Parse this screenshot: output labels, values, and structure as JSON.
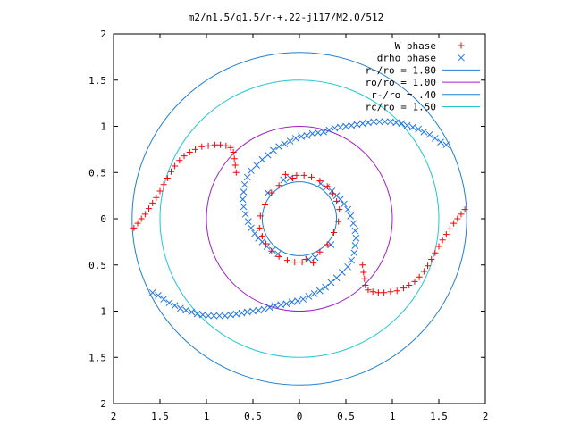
{
  "chart_data": {
    "type": "scatter",
    "title": "m2/n1.5/q1.5/r-+.22-j117/M2.0/512",
    "xlabel": "",
    "ylabel": "",
    "xlim": [
      -2,
      2
    ],
    "ylim": [
      -2,
      2
    ],
    "x_tick_values": [
      -2,
      -1.5,
      -1,
      -0.5,
      0,
      0.5,
      1,
      1.5,
      2
    ],
    "x_tick_labels": [
      "2",
      "1.5",
      "1",
      "0.5",
      "0",
      "0.5",
      "1",
      "1.5",
      "2"
    ],
    "y_tick_values": [
      2,
      1.5,
      1,
      0.5,
      0,
      -0.5,
      -1,
      -1.5,
      -2
    ],
    "y_tick_labels": [
      "2",
      "1.5",
      "1",
      "0.5",
      "0",
      "0.5",
      "1",
      "1.5",
      "2"
    ],
    "grid": false,
    "legend_position": "top-right",
    "point_series": [
      {
        "name": "W phase",
        "marker": "plus",
        "color": "#ff0000",
        "points": [
          [
            -1.78,
            -0.1
          ],
          [
            -1.74,
            -0.05
          ],
          [
            -1.7,
            0.0
          ],
          [
            -1.66,
            0.05
          ],
          [
            -1.62,
            0.11
          ],
          [
            -1.58,
            0.17
          ],
          [
            -1.54,
            0.23
          ],
          [
            -1.5,
            0.3
          ],
          [
            -1.46,
            0.37
          ],
          [
            -1.42,
            0.44
          ],
          [
            -1.38,
            0.51
          ],
          [
            -1.34,
            0.57
          ],
          [
            -1.29,
            0.63
          ],
          [
            -1.24,
            0.68
          ],
          [
            -1.18,
            0.72
          ],
          [
            -1.12,
            0.75
          ],
          [
            -1.05,
            0.78
          ],
          [
            -0.98,
            0.79
          ],
          [
            -0.91,
            0.8
          ],
          [
            -0.85,
            0.8
          ],
          [
            -0.79,
            0.79
          ],
          [
            -0.74,
            0.77
          ],
          [
            -0.71,
            0.72
          ],
          [
            -0.7,
            0.65
          ],
          [
            -0.69,
            0.58
          ],
          [
            -0.68,
            0.5
          ],
          [
            1.78,
            0.1
          ],
          [
            1.74,
            0.05
          ],
          [
            1.7,
            0.0
          ],
          [
            1.66,
            -0.05
          ],
          [
            1.62,
            -0.11
          ],
          [
            1.58,
            -0.17
          ],
          [
            1.54,
            -0.23
          ],
          [
            1.5,
            -0.3
          ],
          [
            1.46,
            -0.37
          ],
          [
            1.42,
            -0.44
          ],
          [
            1.38,
            -0.51
          ],
          [
            1.34,
            -0.57
          ],
          [
            1.29,
            -0.63
          ],
          [
            1.24,
            -0.68
          ],
          [
            1.18,
            -0.72
          ],
          [
            1.12,
            -0.75
          ],
          [
            1.05,
            -0.78
          ],
          [
            0.98,
            -0.79
          ],
          [
            0.91,
            -0.8
          ],
          [
            0.85,
            -0.8
          ],
          [
            0.79,
            -0.79
          ],
          [
            0.74,
            -0.77
          ],
          [
            0.71,
            -0.72
          ],
          [
            0.7,
            -0.65
          ],
          [
            0.69,
            -0.58
          ],
          [
            0.68,
            -0.5
          ],
          [
            -0.03,
            0.47
          ],
          [
            0.05,
            0.47
          ],
          [
            0.13,
            0.45
          ],
          [
            0.22,
            0.41
          ],
          [
            0.3,
            0.35
          ],
          [
            0.36,
            0.27
          ],
          [
            0.4,
            0.19
          ],
          [
            0.43,
            0.1
          ],
          [
            0.42,
            -0.03
          ],
          [
            0.37,
            -0.15
          ],
          [
            0.3,
            -0.28
          ],
          [
            0.22,
            -0.36
          ],
          [
            0.03,
            -0.47
          ],
          [
            -0.05,
            -0.47
          ],
          [
            -0.13,
            -0.45
          ],
          [
            -0.22,
            -0.41
          ],
          [
            -0.3,
            -0.35
          ],
          [
            -0.36,
            -0.27
          ],
          [
            -0.4,
            -0.19
          ],
          [
            -0.43,
            -0.1
          ],
          [
            -0.42,
            0.03
          ],
          [
            -0.37,
            0.15
          ],
          [
            -0.3,
            0.28
          ],
          [
            -0.22,
            0.36
          ],
          [
            -0.15,
            0.48
          ],
          [
            0.15,
            -0.48
          ],
          [
            0.07,
            -0.44
          ],
          [
            -0.07,
            0.44
          ]
        ]
      },
      {
        "name": "drho phase",
        "marker": "cross",
        "color": "#1e73e8",
        "points": [
          [
            -1.58,
            -0.8
          ],
          [
            -1.52,
            -0.83
          ],
          [
            -1.46,
            -0.87
          ],
          [
            -1.4,
            -0.91
          ],
          [
            -1.34,
            -0.94
          ],
          [
            -1.28,
            -0.97
          ],
          [
            -1.22,
            -0.99
          ],
          [
            -1.16,
            -1.01
          ],
          [
            -1.1,
            -1.03
          ],
          [
            -1.04,
            -1.04
          ],
          [
            -0.98,
            -1.05
          ],
          [
            -0.92,
            -1.05
          ],
          [
            -0.86,
            -1.05
          ],
          [
            -0.8,
            -1.05
          ],
          [
            -0.74,
            -1.04
          ],
          [
            -0.68,
            -1.03
          ],
          [
            -0.62,
            -1.02
          ],
          [
            -0.56,
            -1.01
          ],
          [
            -0.5,
            -1.0
          ],
          [
            -0.44,
            -0.99
          ],
          [
            -0.38,
            -0.98
          ],
          [
            -0.32,
            -0.96
          ],
          [
            -0.26,
            -0.94
          ],
          [
            -0.2,
            -0.93
          ],
          [
            -0.14,
            -0.92
          ],
          [
            -0.08,
            -0.9
          ],
          [
            -0.02,
            -0.89
          ],
          [
            0.04,
            -0.87
          ],
          [
            0.1,
            -0.84
          ],
          [
            0.16,
            -0.81
          ],
          [
            0.22,
            -0.78
          ],
          [
            0.28,
            -0.74
          ],
          [
            0.34,
            -0.69
          ],
          [
            0.4,
            -0.64
          ],
          [
            0.46,
            -0.58
          ],
          [
            0.52,
            -0.52
          ],
          [
            0.56,
            -0.45
          ],
          [
            0.59,
            -0.37
          ],
          [
            0.6,
            -0.29
          ],
          [
            0.61,
            -0.21
          ],
          [
            0.6,
            -0.13
          ],
          [
            0.58,
            -0.05
          ],
          [
            0.55,
            0.03
          ],
          [
            0.52,
            0.1
          ],
          [
            0.48,
            0.16
          ],
          [
            0.44,
            0.21
          ],
          [
            0.4,
            0.25
          ],
          [
            0.35,
            0.3
          ],
          [
            0.29,
            0.34
          ],
          [
            0.23,
            0.38
          ],
          [
            1.58,
            0.8
          ],
          [
            1.52,
            0.83
          ],
          [
            1.46,
            0.87
          ],
          [
            1.4,
            0.91
          ],
          [
            1.34,
            0.94
          ],
          [
            1.28,
            0.97
          ],
          [
            1.22,
            0.99
          ],
          [
            1.16,
            1.01
          ],
          [
            1.1,
            1.03
          ],
          [
            1.04,
            1.04
          ],
          [
            0.98,
            1.05
          ],
          [
            0.92,
            1.05
          ],
          [
            0.86,
            1.05
          ],
          [
            0.8,
            1.05
          ],
          [
            0.74,
            1.04
          ],
          [
            0.68,
            1.03
          ],
          [
            0.62,
            1.02
          ],
          [
            0.56,
            1.01
          ],
          [
            0.5,
            1.0
          ],
          [
            0.44,
            0.99
          ],
          [
            0.38,
            0.98
          ],
          [
            0.32,
            0.96
          ],
          [
            0.26,
            0.94
          ],
          [
            0.2,
            0.93
          ],
          [
            0.14,
            0.92
          ],
          [
            0.08,
            0.9
          ],
          [
            0.02,
            0.89
          ],
          [
            -0.04,
            0.87
          ],
          [
            -0.1,
            0.84
          ],
          [
            -0.16,
            0.81
          ],
          [
            -0.22,
            0.78
          ],
          [
            -0.28,
            0.74
          ],
          [
            -0.34,
            0.69
          ],
          [
            -0.4,
            0.64
          ],
          [
            -0.46,
            0.58
          ],
          [
            -0.52,
            0.52
          ],
          [
            -0.56,
            0.45
          ],
          [
            -0.59,
            0.37
          ],
          [
            -0.6,
            0.29
          ],
          [
            -0.61,
            0.21
          ],
          [
            -0.6,
            0.13
          ],
          [
            -0.58,
            0.05
          ],
          [
            -0.55,
            -0.03
          ],
          [
            -0.52,
            -0.1
          ],
          [
            -0.48,
            -0.16
          ],
          [
            -0.44,
            -0.21
          ],
          [
            -0.4,
            -0.25
          ],
          [
            -0.35,
            -0.3
          ],
          [
            -0.29,
            -0.34
          ],
          [
            -0.23,
            -0.38
          ],
          [
            0.17,
            -0.42
          ],
          [
            0.1,
            -0.44
          ],
          [
            -0.17,
            0.42
          ],
          [
            -0.1,
            0.44
          ],
          [
            0.34,
            -0.28
          ],
          [
            -0.34,
            0.28
          ]
        ]
      }
    ],
    "curve_series": [
      {
        "name": "r+/ro = 1.80",
        "type": "circle",
        "radius": 1.8,
        "color": "#1e7fd0"
      },
      {
        "name": "ro/ro = 1.00",
        "type": "circle",
        "radius": 1.0,
        "color": "#a020c8"
      },
      {
        "name": "r-/ro = .40",
        "type": "circle",
        "radius": 0.4,
        "color": "#1e7fd0"
      },
      {
        "name": "rc/ro = 1.50",
        "type": "circle",
        "radius": 1.5,
        "color": "#20c8d0"
      }
    ]
  }
}
